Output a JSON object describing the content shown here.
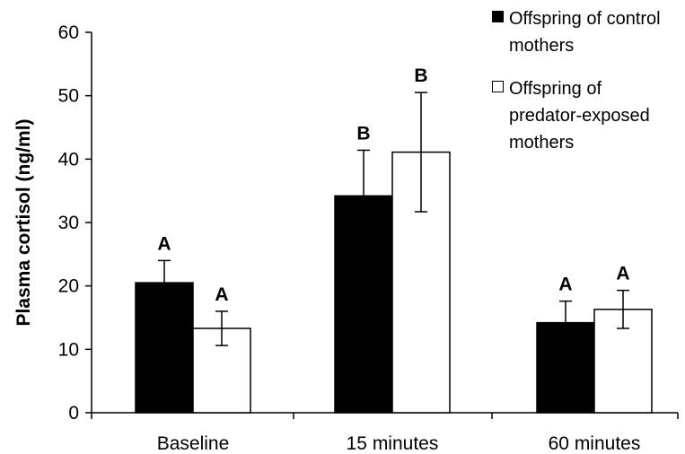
{
  "chart_data": {
    "type": "bar",
    "categories": [
      "Baseline",
      "15 minutes",
      "60 minutes"
    ],
    "series": [
      {
        "name": "Offspring of control mothers",
        "values": [
          20.5,
          34.2,
          14.2
        ],
        "error": [
          3.5,
          7.2,
          3.4
        ],
        "labels": [
          "A",
          "B",
          "A"
        ],
        "color": "#000000"
      },
      {
        "name": "Offspring of predator-exposed mothers",
        "values": [
          13.3,
          41.1,
          16.3
        ],
        "error": [
          2.7,
          9.4,
          3.0
        ],
        "labels": [
          "A",
          "B",
          "A"
        ],
        "color": "#ffffff"
      }
    ],
    "ylabel": "Plasma cortisol (ng/ml)",
    "xlabel": "",
    "ylim": [
      0,
      60
    ],
    "yticks": [
      0,
      10,
      20,
      30,
      40,
      50,
      60
    ],
    "grid": false,
    "legend_position": "top-right",
    "legend_lines": [
      [
        "Offspring of control",
        "mothers"
      ],
      [
        "Offspring of",
        "predator-exposed",
        "mothers"
      ]
    ]
  }
}
